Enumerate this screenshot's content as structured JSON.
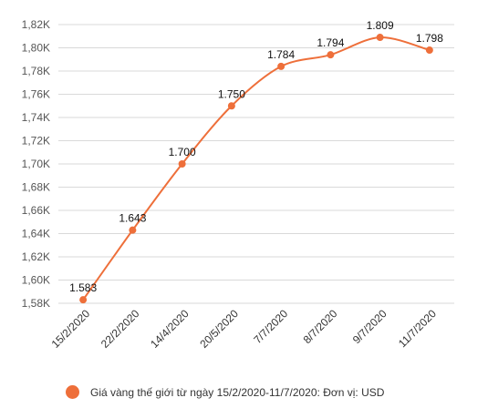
{
  "colors": {
    "series": "#ee6f3a",
    "grid": "#d9d9d9",
    "tick_text": "#555555",
    "label_text": "#111111"
  },
  "chart_data": {
    "type": "line",
    "categories": [
      "15/2/2020",
      "22/2/2020",
      "14/4/2020",
      "20/5/2020",
      "7/7/2020",
      "8/7/2020",
      "9/7/2020",
      "11/7/2020"
    ],
    "series": [
      {
        "name": "Giá vàng thế giới từ ngày 15/2/2020-11/7/2020: Đơn vị: USD",
        "values": [
          1583,
          1643,
          1700,
          1750,
          1784,
          1794,
          1809,
          1798
        ],
        "value_labels": [
          "1.583",
          "1.643",
          "1.700",
          "1.750",
          "1.784",
          "1.794",
          "1.809",
          "1.798"
        ]
      }
    ],
    "y_ticks": [
      1580,
      1600,
      1620,
      1640,
      1660,
      1680,
      1700,
      1720,
      1740,
      1760,
      1780,
      1800,
      1820
    ],
    "y_tick_labels": [
      "1,58K",
      "1,60K",
      "1,62K",
      "1,64K",
      "1,66K",
      "1,68K",
      "1,70K",
      "1,72K",
      "1,74K",
      "1,76K",
      "1,78K",
      "1,80K",
      "1,82K"
    ],
    "ylim": [
      1580,
      1820
    ],
    "grid": true,
    "legend_position": "bottom"
  }
}
